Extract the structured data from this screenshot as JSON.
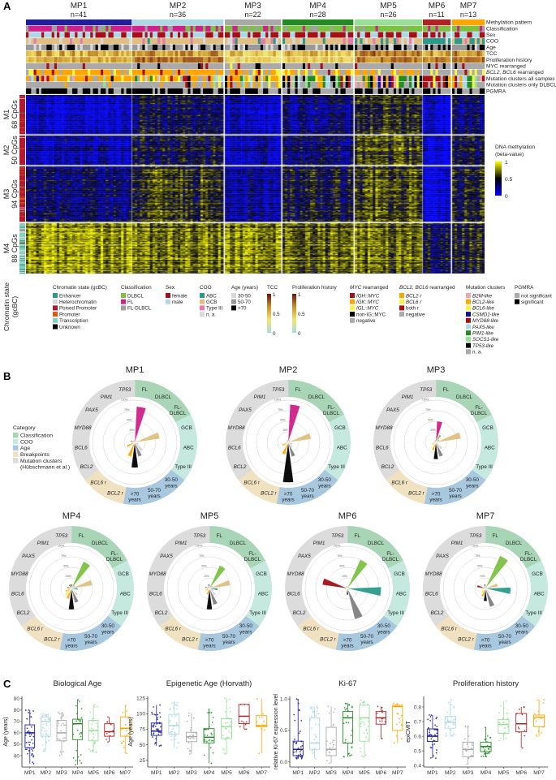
{
  "panel_labels": {
    "a": "A",
    "b": "B",
    "c": "C"
  },
  "clusters": [
    {
      "name": "MP1",
      "n_label": "n=41",
      "n": 41,
      "color": "#1f1f9c"
    },
    {
      "name": "MP2",
      "n_label": "n=36",
      "n": 36,
      "color": "#add8e6"
    },
    {
      "name": "MP3",
      "n_label": "n=22",
      "n": 22,
      "color": "#a9a9a9"
    },
    {
      "name": "MP4",
      "n_label": "n=28",
      "n": 28,
      "color": "#228b22"
    },
    {
      "name": "MP5",
      "n_label": "n=26",
      "n": 26,
      "color": "#98e098"
    },
    {
      "name": "MP6",
      "n_label": "n=11",
      "n": 11,
      "color": "#b22222"
    },
    {
      "name": "MP7",
      "n_label": "n=13",
      "n": 13,
      "color": "#ffa500"
    }
  ],
  "tracks": [
    [
      {
        "text": "Methylation pattern"
      }
    ],
    [
      {
        "text": "Classification"
      }
    ],
    [
      {
        "text": "Sex"
      }
    ],
    [
      {
        "text": "COO"
      }
    ],
    [
      {
        "text": "Age"
      }
    ],
    [
      {
        "text": "TCC"
      }
    ],
    [
      {
        "text": "Proliferation history"
      }
    ],
    [
      {
        "text": "MYC rearranged"
      }
    ],
    [
      {
        "text": "BCL2, BCL6",
        "italic": true
      },
      {
        "text": " rearranged"
      }
    ],
    [
      {
        "text": "Mutation clusters all samples"
      }
    ],
    [
      {
        "text": "Mutation clusters only DLBCL"
      }
    ],
    [
      {
        "text": "PGMRA"
      }
    ]
  ],
  "modules": [
    {
      "name": "M1",
      "cpgs": "68 CpGs",
      "n": 68,
      "mean_beta": [
        0.05,
        0.35,
        0.1,
        0.25,
        0.5,
        0.05,
        0.3
      ]
    },
    {
      "name": "M2",
      "cpgs": "50 CpGs",
      "n": 50,
      "mean_beta": [
        0.15,
        0.4,
        0.15,
        0.3,
        0.6,
        0.05,
        0.35
      ]
    },
    {
      "name": "M3",
      "cpgs": "94 CpGs",
      "n": 94,
      "mean_beta": [
        0.3,
        0.55,
        0.2,
        0.45,
        0.6,
        0.1,
        0.45
      ]
    },
    {
      "name": "M4",
      "cpgs": "88 CpGs",
      "n": 88,
      "mean_beta": [
        0.8,
        0.7,
        0.75,
        0.65,
        0.7,
        0.4,
        0.5
      ]
    }
  ],
  "chromatin_axis": {
    "line1": "Chromatin state",
    "line2": "(gcBC)"
  },
  "methylation_legend": {
    "title1": "DNA methylation",
    "title2": "(beta-value)",
    "ticks": [
      "1",
      "0.5",
      "0"
    ],
    "low": "#0000ff",
    "mid": "#000000",
    "high": "#ffff00"
  },
  "legends": [
    {
      "key": "chromatin",
      "title": [
        {
          "text": "Chromatin state (gcBC)"
        }
      ],
      "items": [
        {
          "label": "Enhancer",
          "color": "#2a9a8a"
        },
        {
          "label": "Heterochromatin",
          "color": "#d9d9d9"
        },
        {
          "label": "Poised Promoter",
          "color": "#b2182b"
        },
        {
          "label": "Promoter",
          "color": "#e6550d"
        },
        {
          "label": "Transcription",
          "color": "#7fd4c1"
        },
        {
          "label": "Unknown",
          "color": "#000000"
        }
      ]
    },
    {
      "key": "classification",
      "title": [
        {
          "text": "Classification"
        }
      ],
      "items": [
        {
          "label": "DLBCL",
          "color": "#7cc142"
        },
        {
          "label": "FL",
          "color": "#d0208a"
        },
        {
          "label": "FL-DLBCL",
          "color": "#a0a0a0"
        }
      ]
    },
    {
      "key": "sex",
      "title": [
        {
          "text": "Sex"
        }
      ],
      "items": [
        {
          "label": "female",
          "color": "#a50f15"
        },
        {
          "label": "male",
          "color": "#add8e6"
        }
      ]
    },
    {
      "key": "coo",
      "title": [
        {
          "text": "COO"
        }
      ],
      "items": [
        {
          "label": "ABC",
          "color": "#2a9a8a"
        },
        {
          "label": "GCB",
          "color": "#e0c080"
        },
        {
          "label": "Type III",
          "color": "#e87ab0"
        },
        {
          "label": "n. a.",
          "color": "#d9d9d9"
        }
      ]
    },
    {
      "key": "age",
      "title": [
        {
          "text": "Age (years)"
        }
      ],
      "items": [
        {
          "label": "30-50",
          "color": "#d9d9d9"
        },
        {
          "label": "50-70",
          "color": "#999999"
        },
        {
          "label": ">70",
          "color": "#000000"
        }
      ]
    },
    {
      "key": "myc",
      "title": [
        {
          "text": "MYC",
          "italic": true
        },
        {
          "text": " rearranged"
        }
      ],
      "items": [
        {
          "label": "IGH::MYC",
          "color": "#a50f15",
          "italic": true
        },
        {
          "label": "IGK::MYC",
          "color": "#ffa500",
          "italic": true
        },
        {
          "label": "IGL::MYC",
          "color": "#f5f542",
          "italic": true
        },
        {
          "label": "non-IG::MYC",
          "color": "#000000"
        },
        {
          "label": "negative",
          "color": "#aaaaaa"
        }
      ]
    },
    {
      "key": "bcl",
      "title": [
        {
          "text": "BCL2, BCL6",
          "italic": true
        },
        {
          "text": " rearranged"
        }
      ],
      "items": [
        {
          "label": "BCL2 r",
          "color": "#ffa500",
          "italic": true
        },
        {
          "label": "BCL6 r",
          "color": "#f5f542",
          "italic": true
        },
        {
          "label": "both r",
          "color": "#a50f15"
        },
        {
          "label": "negative",
          "color": "#aaaaaa"
        }
      ]
    },
    {
      "key": "mutation",
      "title": [
        {
          "text": "Mutation clusters"
        }
      ],
      "items": [
        {
          "label": "B2M-like",
          "color": "#f4a6a6",
          "italic": true
        },
        {
          "label": "BCL2-like",
          "color": "#ffa500",
          "italic": true
        },
        {
          "label": "BCL6-like",
          "color": "#f5f542",
          "italic": true
        },
        {
          "label": "CSMD1-like",
          "color": "#1010a0",
          "italic": true
        },
        {
          "label": "MYD88-like",
          "color": "#a50f15",
          "italic": true
        },
        {
          "label": "PAX5-like",
          "color": "#add8e6",
          "italic": true
        },
        {
          "label": "PIM1-like",
          "color": "#228b22",
          "italic": true
        },
        {
          "label": "SOCS1-like",
          "color": "#98e098",
          "italic": true
        },
        {
          "label": "TP53-like",
          "color": "#000000",
          "italic": true
        },
        {
          "label": "n. a.",
          "color": "#aaaaaa"
        }
      ]
    },
    {
      "key": "pgmra",
      "title": [
        {
          "text": "PGMRA"
        }
      ],
      "items": [
        {
          "label": "not significant",
          "color": "#aaaaaa"
        },
        {
          "label": "significant",
          "color": "#000000"
        }
      ]
    }
  ],
  "gradient_legends": [
    {
      "key": "tcc",
      "title": "TCC",
      "ticks": [
        "1",
        "0.5",
        "0"
      ],
      "colors": [
        "#a6dbe8",
        "#f5e56b",
        "#c8902a",
        "#6b0f0f"
      ]
    },
    {
      "key": "prolif",
      "title": "Proliferation history",
      "ticks": [
        "1",
        "0.5",
        "0"
      ],
      "colors": [
        "#a6dbe8",
        "#f5e56b",
        "#c8902a",
        "#6b0f0f"
      ]
    }
  ],
  "panel_b": {
    "legend_title": "Category",
    "categories": [
      {
        "label": "Classification",
        "color": "#a8d5b5"
      },
      {
        "label": "COO",
        "color": "#c5e8df"
      },
      {
        "label": "Age",
        "color": "#a8c8e0"
      },
      {
        "label": "Breakpoints",
        "color": "#f0e2c0"
      },
      {
        "label": "Mutation clusters",
        "label2": "(Hübschmann et al.)",
        "color": "#dcdcdc"
      }
    ],
    "grid_labels": [
      "25%",
      "50%",
      "75%",
      "100%"
    ],
    "sectors": [
      {
        "label": "FL",
        "cat": 0,
        "color": "#d0208a"
      },
      {
        "label": "DLBCL",
        "cat": 0,
        "color": "#7cc142"
      },
      {
        "label": "FL-",
        "label2": "DLBCL",
        "cat": 0,
        "color": "#a0a0a0"
      },
      {
        "label": "GCB",
        "cat": 1,
        "color": "#e0c080"
      },
      {
        "label": "ABC",
        "cat": 1,
        "color": "#2a9a8a"
      },
      {
        "label": "Type III",
        "cat": 1,
        "color": "#e87ab0"
      },
      {
        "label": "30-50",
        "label2": "years",
        "cat": 2,
        "color": "#d0d0d0"
      },
      {
        "label": "50-70",
        "label2": "years",
        "cat": 2,
        "color": "#808080"
      },
      {
        "label": ">70",
        "label2": "years",
        "cat": 2,
        "color": "#000000"
      },
      {
        "label": "BCL2 r",
        "cat": 3,
        "color": "#ffa500",
        "italic": true
      },
      {
        "label": "BCL6 r",
        "cat": 3,
        "color": "#f5f542",
        "italic": true
      },
      {
        "label": "BCL2",
        "cat": 4,
        "color": "#ffa500",
        "italic": true
      },
      {
        "label": "BCL6",
        "cat": 4,
        "color": "#e8e830",
        "italic": true
      },
      {
        "label": "MYD88",
        "cat": 4,
        "color": "#a50f15",
        "italic": true
      },
      {
        "label": "PAX5",
        "cat": 4,
        "color": "#add8e6",
        "italic": true
      },
      {
        "label": "PIM1",
        "cat": 4,
        "color": "#228b22",
        "italic": true
      },
      {
        "label": "TP53",
        "cat": 4,
        "color": "#000000",
        "italic": true
      }
    ],
    "plots": [
      {
        "name": "MP1",
        "values": [
          0.85,
          0.05,
          0.05,
          0.6,
          0.03,
          0.1,
          0.25,
          0.35,
          0.6,
          0.35,
          0.05,
          0.2,
          0.05,
          0.1,
          0.05,
          0.05,
          0.05
        ]
      },
      {
        "name": "MP2",
        "values": [
          0.9,
          0.08,
          0.05,
          0.55,
          0.03,
          0.1,
          0.15,
          0.35,
          0.95,
          0.3,
          0.05,
          0.15,
          0.05,
          0.05,
          0.05,
          0.05,
          0.05
        ]
      },
      {
        "name": "MP3",
        "values": [
          0.5,
          0.2,
          0.1,
          0.6,
          0.05,
          0.05,
          0.2,
          0.35,
          0.4,
          0.2,
          0.1,
          0.1,
          0.05,
          0.05,
          0.05,
          0.05,
          0.05
        ]
      },
      {
        "name": "MP4",
        "values": [
          0.1,
          0.7,
          0.1,
          0.5,
          0.15,
          0.05,
          0.2,
          0.35,
          0.5,
          0.25,
          0.2,
          0.15,
          0.1,
          0.1,
          0.05,
          0.1,
          0.1
        ]
      },
      {
        "name": "MP5",
        "values": [
          0.05,
          0.6,
          0.1,
          0.5,
          0.2,
          0.1,
          0.2,
          0.4,
          0.5,
          0.15,
          0.1,
          0.1,
          0.05,
          0.1,
          0.05,
          0.05,
          0.1
        ]
      },
      {
        "name": "MP6",
        "values": [
          0.05,
          0.75,
          0.05,
          0.05,
          0.8,
          0.05,
          0.05,
          0.75,
          0.15,
          0.03,
          0.1,
          0.03,
          0.05,
          0.6,
          0.03,
          0.05,
          0.05
        ]
      },
      {
        "name": "MP7",
        "values": [
          0.05,
          0.85,
          0.05,
          0.3,
          0.6,
          0.05,
          0.15,
          0.45,
          0.3,
          0.2,
          0.15,
          0.05,
          0.1,
          0.2,
          0.05,
          0.05,
          0.1
        ]
      }
    ]
  },
  "chart_data": [
    {
      "type": "box",
      "title": "Biological Age",
      "ylabel": "Age (years)",
      "ylim": [
        30,
        92
      ],
      "yticks": [
        "40",
        "50",
        "60",
        "70",
        "80",
        "90"
      ],
      "categories": [
        "MP1",
        "MP2",
        "MP3",
        "MP4",
        "MP5",
        "MP6",
        "MP7"
      ],
      "boxes": [
        [
          33,
          47,
          60,
          67,
          80
        ],
        [
          44,
          57,
          70,
          74,
          77
        ],
        [
          40,
          53,
          60,
          71,
          78
        ],
        [
          32,
          54,
          68,
          72,
          89
        ],
        [
          43,
          53,
          62,
          71,
          85
        ],
        [
          52,
          57,
          61,
          68,
          74
        ],
        [
          42,
          57,
          64,
          74,
          84
        ]
      ]
    },
    {
      "type": "box",
      "title": "Epigenetic Age (Horvath)",
      "ylabel": "Age (years)",
      "ylim": [
        14,
        128
      ],
      "yticks": [
        "25",
        "50",
        "75",
        "100",
        "125"
      ],
      "categories": [
        "MP1",
        "MP2",
        "MP3",
        "MP4",
        "MP5",
        "MP6",
        "MP7"
      ],
      "boxes": [
        [
          48,
          65,
          72,
          85,
          114
        ],
        [
          45,
          67,
          81,
          99,
          118
        ],
        [
          35,
          55,
          63,
          70,
          101
        ],
        [
          20,
          53,
          62,
          76,
          107
        ],
        [
          35,
          60,
          79,
          92,
          125
        ],
        [
          75,
          84,
          96,
          115,
          115
        ],
        [
          36,
          79,
          81,
          97,
          124
        ]
      ]
    },
    {
      "type": "box",
      "title": "Ki-67",
      "ylabel": "relative Ki-67 expression level",
      "ylim": [
        -0.08,
        1.04
      ],
      "yticks": [
        "0.0",
        "0.5",
        "1.0"
      ],
      "categories": [
        "MP1",
        "MP2",
        "MP3",
        "MP4",
        "MP5",
        "MP6",
        "MP7"
      ],
      "boxes": [
        [
          0.05,
          0.1,
          0.2,
          0.33,
          1.0
        ],
        [
          0.05,
          0.2,
          0.3,
          0.7,
          0.88
        ],
        [
          -0.02,
          0.1,
          0.2,
          0.55,
          0.88
        ],
        [
          0.08,
          0.3,
          0.7,
          0.8,
          0.93
        ],
        [
          0.08,
          0.33,
          0.7,
          0.9,
          0.98
        ],
        [
          0.37,
          0.6,
          0.7,
          0.8,
          0.88
        ],
        [
          0.3,
          0.5,
          0.88,
          0.9,
          0.93
        ]
      ]
    },
    {
      "type": "box",
      "title": "Proliferation history",
      "ylabel": "epiCMIT",
      "ylim": [
        0.39,
        0.872
      ],
      "yticks": [
        "0.4",
        "0.5",
        "0.6",
        "0.7",
        "0.8"
      ],
      "categories": [
        "MP1",
        "MP2",
        "MP3",
        "MP4",
        "MP5",
        "MP6",
        "MP7"
      ],
      "boxes": [
        [
          0.45,
          0.565,
          0.6,
          0.65,
          0.745
        ],
        [
          0.6,
          0.655,
          0.695,
          0.735,
          0.85
        ],
        [
          0.41,
          0.46,
          0.51,
          0.56,
          0.67
        ],
        [
          0.46,
          0.495,
          0.53,
          0.56,
          0.66
        ],
        [
          0.57,
          0.62,
          0.68,
          0.715,
          0.84
        ],
        [
          0.52,
          0.63,
          0.685,
          0.755,
          0.8
        ],
        [
          0.6,
          0.665,
          0.73,
          0.745,
          0.85
        ]
      ]
    }
  ]
}
